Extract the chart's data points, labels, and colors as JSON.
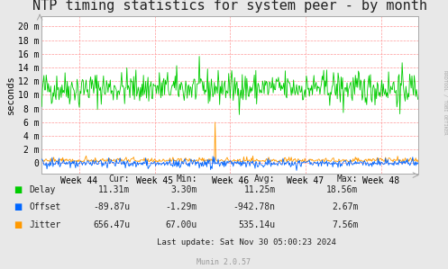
{
  "title": "NTP timing statistics for system peer - by month",
  "ylabel": "seconds",
  "bg_color": "#e8e8e8",
  "plot_bg_color": "#ffffff",
  "grid_color": "#ff9999",
  "title_fontsize": 11,
  "axis_fontsize": 7,
  "label_fontsize": 7.5,
  "week_labels": [
    "Week 44",
    "Week 45",
    "Week 46",
    "Week 47",
    "Week 48"
  ],
  "yticks": [
    0,
    2,
    4,
    6,
    8,
    10,
    12,
    14,
    16,
    18,
    20
  ],
  "ytick_labels": [
    "0",
    "2 m",
    "4 m",
    "6 m",
    "8 m",
    "10 m",
    "12 m",
    "14 m",
    "16 m",
    "18 m",
    "20 m"
  ],
  "ylim": [
    -1.5,
    21.5
  ],
  "delay_color": "#00cc00",
  "offset_color": "#0066ff",
  "jitter_color": "#ff9900",
  "legend_items": [
    "Delay",
    "Offset",
    "Jitter"
  ],
  "stats_headers": [
    "Cur:",
    "Min:",
    "Avg:",
    "Max:"
  ],
  "stats_delay": [
    "11.31m",
    "3.30m",
    "11.25m",
    "18.56m"
  ],
  "stats_offset": [
    "-89.87u",
    "-1.29m",
    "-942.78n",
    "2.67m"
  ],
  "stats_jitter": [
    "656.47u",
    "67.00u",
    "535.14u",
    "7.56m"
  ],
  "last_update": "Last update: Sat Nov 30 05:00:23 2024",
  "munin_version": "Munin 2.0.57",
  "rrdtool_label": "RRDTOOL / TOBI OETIKER",
  "n_points": 500
}
